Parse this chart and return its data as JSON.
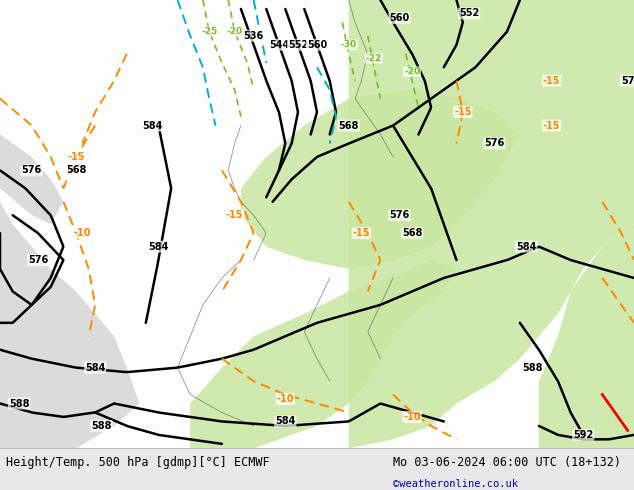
{
  "title_left": "Height/Temp. 500 hPa [gdmp][°C] ECMWF",
  "title_right": "Mo 03-06-2024 06:00 UTC (18+132)",
  "credit": "©weatheronline.co.uk",
  "bg_color": "#f0f0f0",
  "land_color_light": "#c8e6a0",
  "land_color_gray": "#c8c8c8",
  "sea_color": "#ffffff",
  "contour_color_black": "#000000",
  "contour_color_orange": "#ff8c00",
  "contour_color_cyan": "#00bcd4",
  "contour_color_green": "#90c030",
  "fig_width": 6.34,
  "fig_height": 4.9,
  "dpi": 100,
  "font_size_title": 8.5,
  "font_size_credit": 7.5,
  "font_size_label": 7
}
